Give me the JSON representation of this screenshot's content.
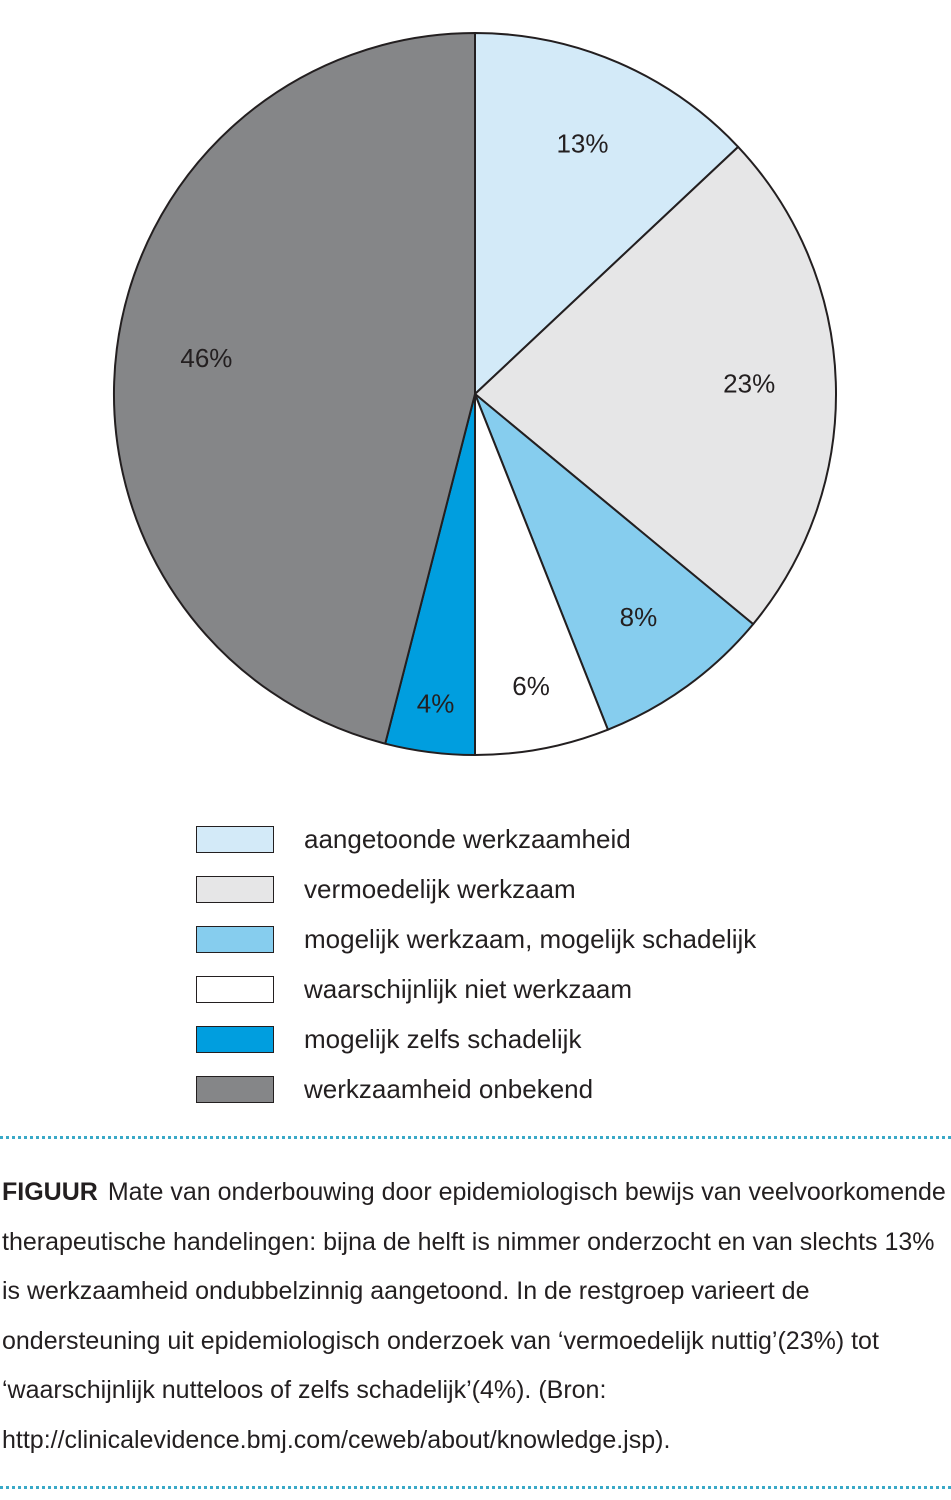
{
  "chart_data": {
    "type": "pie",
    "start_angle_deg": 0,
    "direction": "clockwise",
    "slices": [
      {
        "label": "aangetoonde werkzaamheid",
        "value": 13,
        "value_label": "13%",
        "color": "#d3eaf8"
      },
      {
        "label": "vermoedelijk werkzaam",
        "value": 23,
        "value_label": "23%",
        "color": "#e6e6e7"
      },
      {
        "label": "mogelijk werkzaam, mogelijk schadelijk",
        "value": 8,
        "value_label": "8%",
        "color": "#86cdee"
      },
      {
        "label": "waarschijnlijk niet werkzaam",
        "value": 6,
        "value_label": "6%",
        "color": "#ffffff"
      },
      {
        "label": "mogelijk zelfs schadelijk",
        "value": 4,
        "value_label": "4%",
        "color": "#009edf"
      },
      {
        "label": "werkzaamheid onbekend",
        "value": 46,
        "value_label": "46%",
        "color": "#858688"
      }
    ],
    "legend_position": "bottom"
  },
  "caption": {
    "label": "FIGUUR",
    "text": "Mate van onderbouwing door epidemiologisch bewijs van veelvoorkomende therapeutische handelingen: bijna de helft is nimmer onderzocht en van slechts 13% is werkzaamheid ondubbelzinnig aangetoond. In de restgroep varieert de ondersteuning uit epidemiologisch onderzoek van ‘vermoedelijk nuttig’(23%) tot ‘waarschijnlijk nutteloos of zelfs schadelijk’(4%). (Bron: http://clinicalevidence.bmj.com/ceweb/about/knowledge.jsp)."
  },
  "colors": {
    "rule": "#3aa9c7",
    "outline": "#231f20"
  }
}
